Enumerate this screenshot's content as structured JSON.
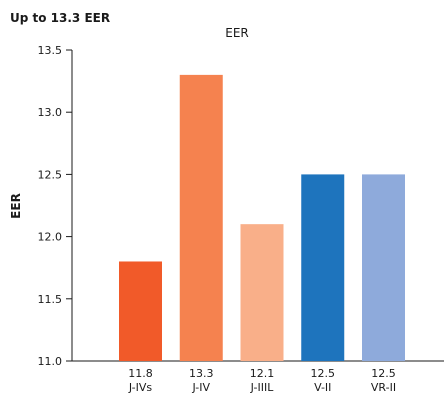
{
  "headline": "Up to 13.3 EER",
  "chart_data": {
    "type": "bar",
    "title": "EER",
    "xlabel": "",
    "ylabel": "EER",
    "ylim": [
      11.0,
      13.5
    ],
    "yticks": [
      "11.0",
      "11.5",
      "12.0",
      "12.5",
      "13.0",
      "13.5"
    ],
    "categories": [
      "J-IVs",
      "J-IV",
      "J-IIIL",
      "V-II",
      "VR-II"
    ],
    "values": [
      11.8,
      13.3,
      12.1,
      12.5,
      12.5
    ],
    "value_labels": [
      "11.8",
      "13.3",
      "12.1",
      "12.5",
      "12.5"
    ],
    "colors": [
      "#f15a29",
      "#f5824f",
      "#f9af89",
      "#1e74bd",
      "#8eaadb"
    ],
    "grid": false,
    "legend": "none"
  }
}
